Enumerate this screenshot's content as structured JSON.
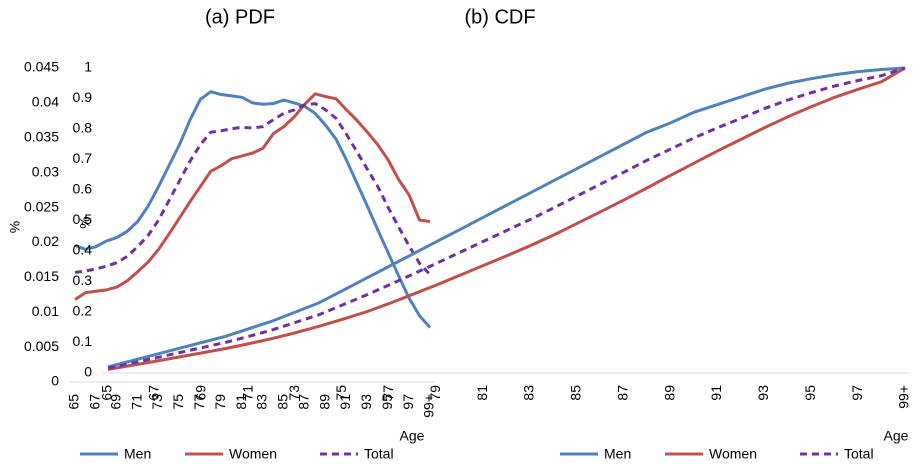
{
  "chart_data": [
    {
      "type": "line",
      "title": "(a) PDF",
      "y_label": "%",
      "x_label": "Age",
      "categories": [
        "65",
        null,
        "67",
        null,
        "69",
        null,
        "71",
        null,
        "73",
        null,
        "75",
        null,
        "77",
        null,
        "79",
        null,
        "81",
        null,
        "83",
        null,
        "85",
        null,
        "87",
        null,
        "89",
        null,
        "91",
        null,
        "93",
        null,
        "95",
        null,
        "97",
        null,
        "99+"
      ],
      "ylim": [
        0,
        0.045
      ],
      "yticks": [
        0,
        0.005,
        0.01,
        0.015,
        0.02,
        0.025,
        0.03,
        0.035,
        0.04,
        0.045
      ],
      "series": [
        {
          "name": "Men",
          "color": "#4f81bd",
          "dashed": false,
          "values": [
            0.0196,
            0.019,
            0.0194,
            0.0202,
            0.0207,
            0.0216,
            0.023,
            0.0252,
            0.028,
            0.031,
            0.034,
            0.0375,
            0.0405,
            0.0416,
            0.0412,
            0.041,
            0.0408,
            0.04,
            0.0398,
            0.0399,
            0.0404,
            0.04,
            0.0395,
            0.0385,
            0.0368,
            0.0348,
            0.0318,
            0.0285,
            0.0252,
            0.0218,
            0.0185,
            0.0152,
            0.012,
            0.0095,
            0.0078
          ]
        },
        {
          "name": "Women",
          "color": "#c0504d",
          "dashed": false,
          "values": [
            0.0118,
            0.0128,
            0.013,
            0.0132,
            0.0136,
            0.0145,
            0.0158,
            0.0172,
            0.019,
            0.0212,
            0.0235,
            0.0258,
            0.028,
            0.0302,
            0.031,
            0.032,
            0.0324,
            0.0328,
            0.0335,
            0.0356,
            0.0366,
            0.038,
            0.0398,
            0.0413,
            0.0409,
            0.0406,
            0.039,
            0.0375,
            0.0358,
            0.034,
            0.0318,
            0.029,
            0.0268,
            0.0232,
            0.023
          ]
        },
        {
          "name": "Total",
          "color": "#7030a0",
          "dashed": true,
          "values": [
            0.0157,
            0.0159,
            0.0162,
            0.0166,
            0.0171,
            0.018,
            0.0194,
            0.021,
            0.0232,
            0.026,
            0.0288,
            0.0316,
            0.034,
            0.0358,
            0.036,
            0.0363,
            0.0365,
            0.0364,
            0.0366,
            0.0376,
            0.0385,
            0.039,
            0.0397,
            0.0399,
            0.039,
            0.0378,
            0.0355,
            0.033,
            0.0305,
            0.028,
            0.025,
            0.0222,
            0.0195,
            0.017,
            0.0154
          ]
        }
      ]
    },
    {
      "type": "line",
      "title": "(b) CDF",
      "y_label": "%",
      "x_label": "Age",
      "categories": [
        "65",
        null,
        "67",
        null,
        "69",
        null,
        "71",
        null,
        "73",
        null,
        "75",
        null,
        "77",
        null,
        "79",
        null,
        "81",
        null,
        "83",
        null,
        "85",
        null,
        "87",
        null,
        "89",
        null,
        "91",
        null,
        "93",
        null,
        "95",
        null,
        "97",
        null,
        "99+"
      ],
      "ylim": [
        0,
        1
      ],
      "yticks": [
        0,
        0.1,
        0.2,
        0.3,
        0.4,
        0.5,
        0.6,
        0.7,
        0.8,
        0.9,
        1
      ],
      "series": [
        {
          "name": "Men",
          "color": "#4f81bd",
          "dashed": false,
          "values": [
            0.02,
            0.04,
            0.06,
            0.08,
            0.1,
            0.12,
            0.145,
            0.17,
            0.2,
            0.23,
            0.27,
            0.31,
            0.35,
            0.39,
            0.43,
            0.47,
            0.51,
            0.55,
            0.59,
            0.63,
            0.67,
            0.71,
            0.75,
            0.79,
            0.82,
            0.855,
            0.88,
            0.905,
            0.93,
            0.95,
            0.965,
            0.978,
            0.988,
            0.995,
            1
          ]
        },
        {
          "name": "Women",
          "color": "#c0504d",
          "dashed": false,
          "values": [
            0.012,
            0.025,
            0.038,
            0.052,
            0.066,
            0.08,
            0.096,
            0.113,
            0.132,
            0.153,
            0.176,
            0.2,
            0.228,
            0.258,
            0.288,
            0.32,
            0.352,
            0.384,
            0.417,
            0.452,
            0.49,
            0.528,
            0.567,
            0.607,
            0.648,
            0.688,
            0.728,
            0.766,
            0.804,
            0.84,
            0.873,
            0.904,
            0.93,
            0.955,
            1
          ]
        },
        {
          "name": "Total",
          "color": "#7030a0",
          "dashed": true,
          "values": [
            0.016,
            0.032,
            0.049,
            0.066,
            0.083,
            0.1,
            0.12,
            0.141,
            0.166,
            0.191,
            0.223,
            0.255,
            0.289,
            0.324,
            0.359,
            0.395,
            0.431,
            0.467,
            0.503,
            0.541,
            0.58,
            0.619,
            0.658,
            0.698,
            0.734,
            0.771,
            0.804,
            0.835,
            0.867,
            0.895,
            0.919,
            0.941,
            0.959,
            0.975,
            1
          ]
        }
      ]
    }
  ]
}
